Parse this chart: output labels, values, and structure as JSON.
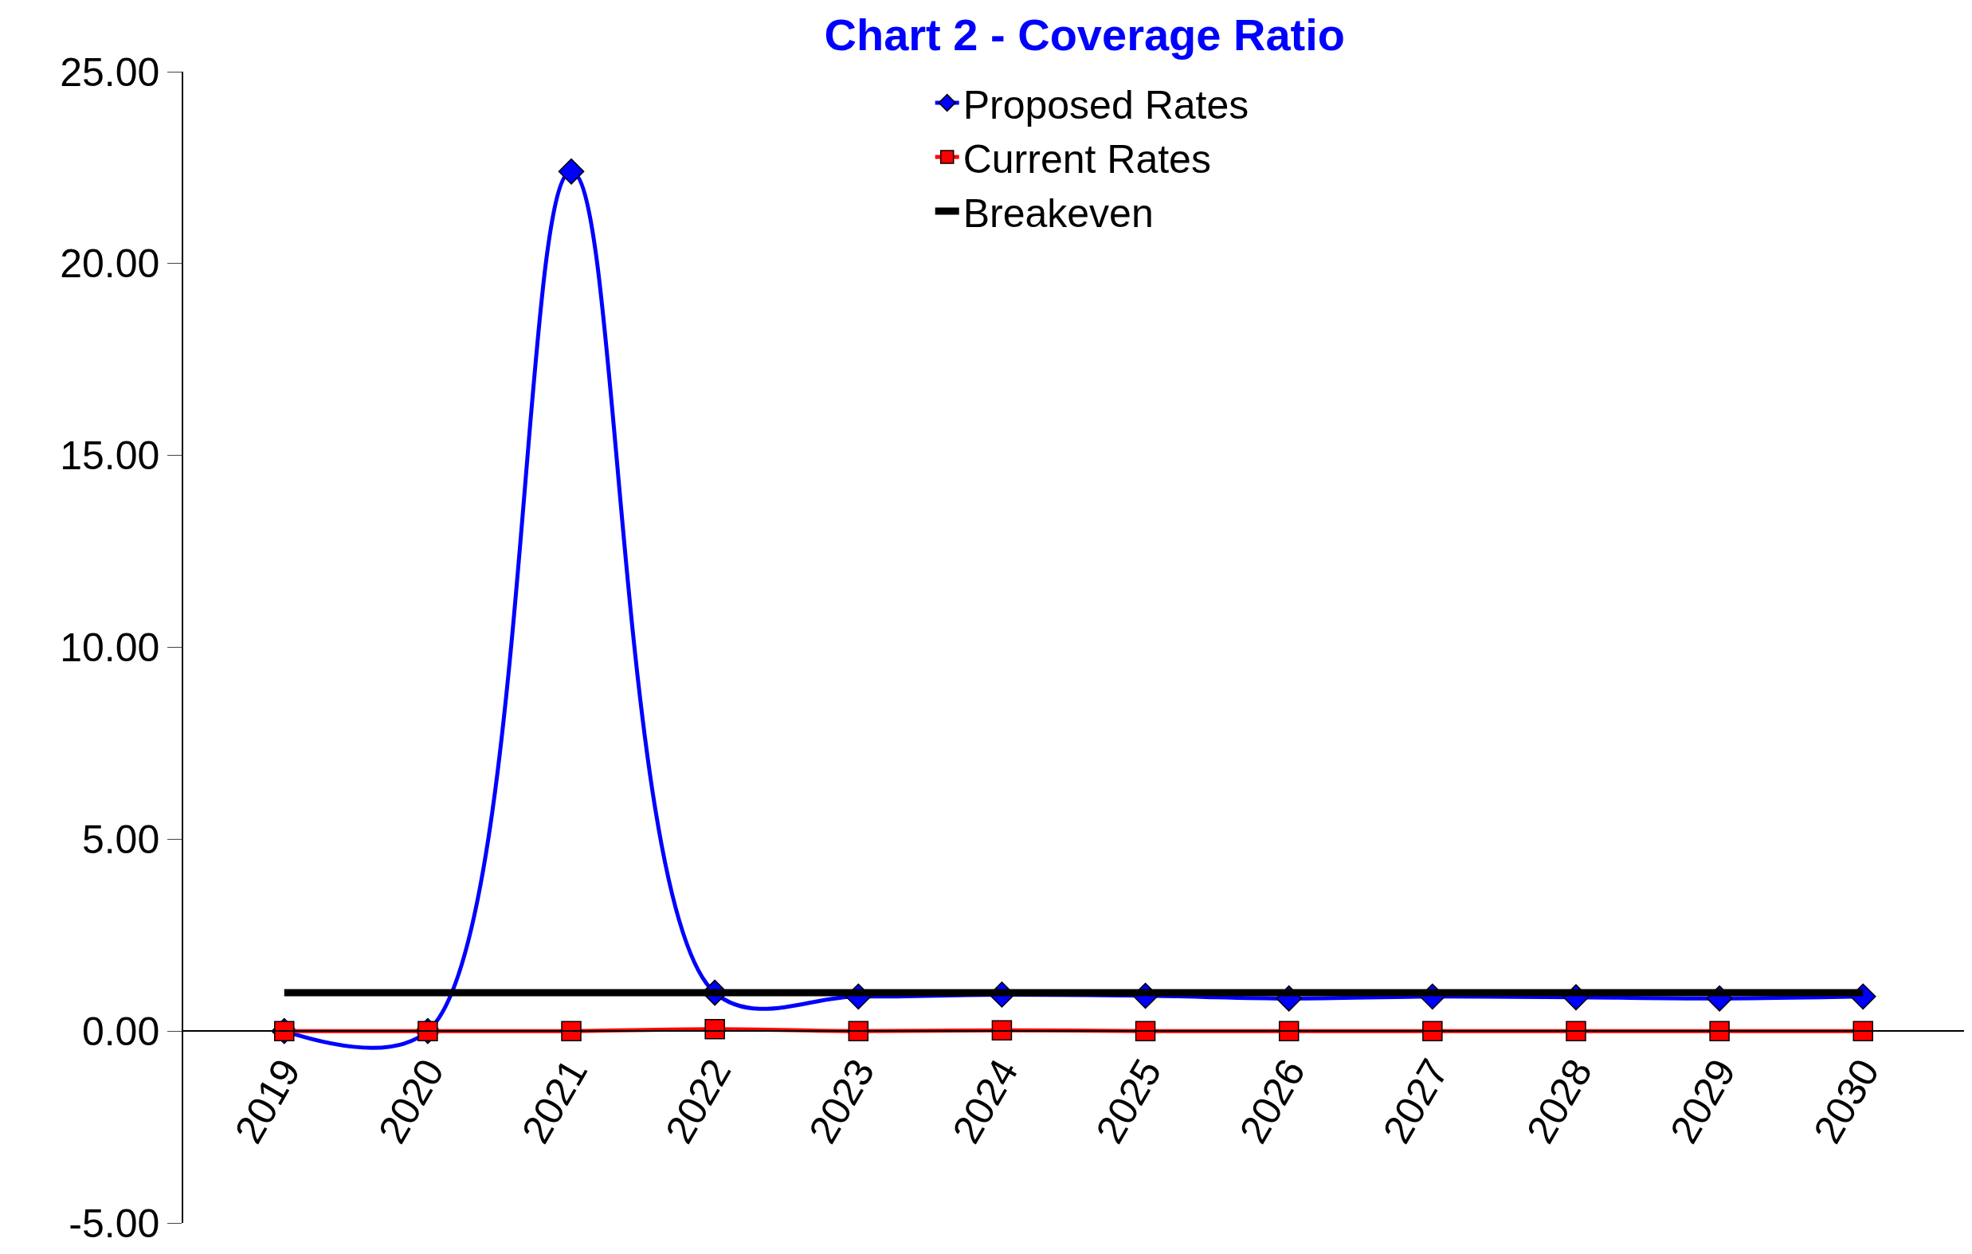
{
  "chart_data": {
    "type": "line",
    "title": "Chart 2 - Coverage Ratio",
    "categories": [
      "2019",
      "2020",
      "2021",
      "2022",
      "2023",
      "2024",
      "2025",
      "2026",
      "2027",
      "2028",
      "2029",
      "2030"
    ],
    "series": [
      {
        "name": "Proposed Rates",
        "color": "#0000ff",
        "marker": "diamond",
        "values": [
          0,
          0,
          22.4,
          1.0,
          0.9,
          0.95,
          0.92,
          0.85,
          0.9,
          0.88,
          0.85,
          0.9
        ]
      },
      {
        "name": "Current Rates",
        "color": "#ff0000",
        "marker": "square",
        "values": [
          0,
          0,
          0,
          0.05,
          0,
          0.02,
          0,
          0,
          0,
          0,
          0,
          0
        ]
      },
      {
        "name": "Breakeven",
        "color": "#000000",
        "marker": "none",
        "values": [
          1,
          1,
          1,
          1,
          1,
          1,
          1,
          1,
          1,
          1,
          1,
          1
        ]
      }
    ],
    "ylim": [
      -5,
      25
    ],
    "yticks": [
      {
        "value": -5,
        "label": "-5.00"
      },
      {
        "value": 0,
        "label": "0.00"
      },
      {
        "value": 5,
        "label": "5.00"
      },
      {
        "value": 10,
        "label": "10.00"
      },
      {
        "value": 15,
        "label": "15.00"
      },
      {
        "value": 20,
        "label": "20.00"
      },
      {
        "value": 25,
        "label": "25.00"
      }
    ],
    "legend": "top"
  }
}
